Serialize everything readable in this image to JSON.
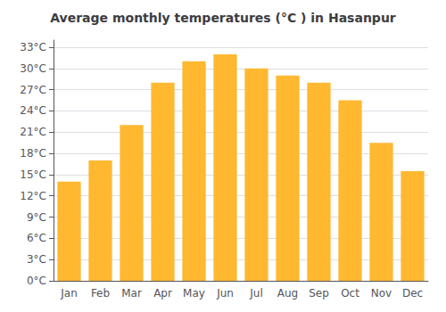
{
  "chart_data": {
    "type": "bar",
    "title": "Average monthly temperatures (°C ) in Hasanpur",
    "categories": [
      "Jan",
      "Feb",
      "Mar",
      "Apr",
      "May",
      "Jun",
      "Jul",
      "Aug",
      "Sep",
      "Oct",
      "Nov",
      "Dec"
    ],
    "values": [
      14,
      17,
      22,
      28,
      31,
      32,
      30,
      29,
      28,
      25.5,
      19.5,
      15.5
    ],
    "color": "#FFB830",
    "ylim": [
      0,
      34
    ],
    "yticks": [
      {
        "value": 0,
        "label": "0°C"
      },
      {
        "value": 3,
        "label": "3°C"
      },
      {
        "value": 6,
        "label": "6°C"
      },
      {
        "value": 9,
        "label": "9°C"
      },
      {
        "value": 12,
        "label": "12°C"
      },
      {
        "value": 15,
        "label": "15°C"
      },
      {
        "value": 18,
        "label": "18°C"
      },
      {
        "value": 21,
        "label": "21°C"
      },
      {
        "value": 24,
        "label": "24°C"
      },
      {
        "value": 27,
        "label": "27°C"
      },
      {
        "value": 30,
        "label": "30°C"
      },
      {
        "value": 33,
        "label": "33°C"
      }
    ],
    "grid": true
  }
}
